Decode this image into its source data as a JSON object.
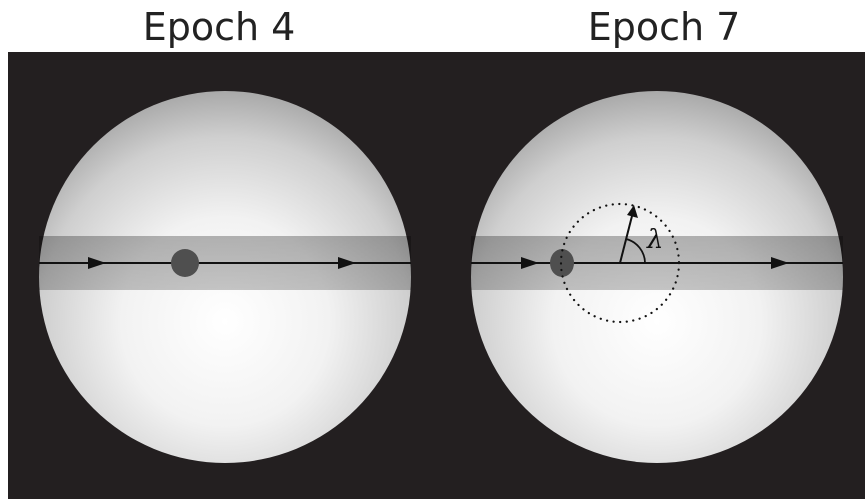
{
  "panels": [
    {
      "title": "Epoch 4"
    },
    {
      "title": "Epoch 7"
    }
  ],
  "angle_label": "λ",
  "colors": {
    "background": "#231f20",
    "star_center": "#ffffff",
    "star_edge": "#a9a9a9",
    "transit_chord": "#808080",
    "planet": "#4f4f4f",
    "line": "#111111"
  }
}
